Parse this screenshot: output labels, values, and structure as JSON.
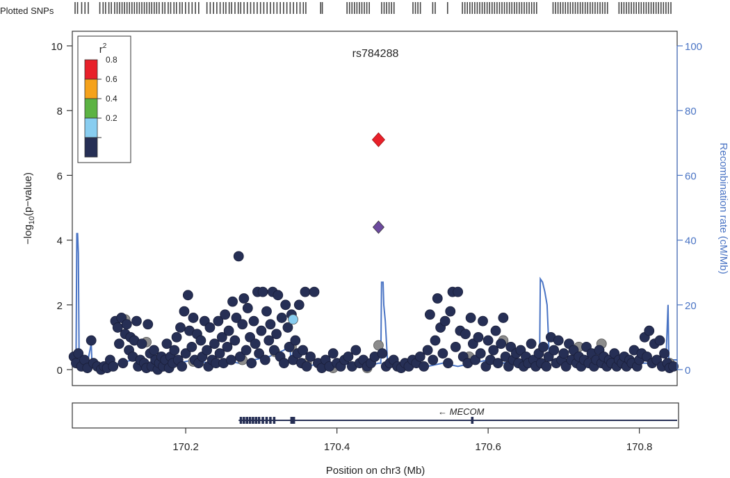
{
  "chart_data": {
    "type": "scatter",
    "title": "rs784288",
    "plotted_snps_label": "Plotted SNPs",
    "xlabel": "Position on chr3 (Mb)",
    "ylabel_left_prefix": "−log",
    "ylabel_left_sub": "10",
    "ylabel_left_suffix": "(p−value)",
    "ylabel_right": "Recombination rate (cM/Mb)",
    "xlim": [
      170.05,
      170.85
    ],
    "ylim_left": [
      0,
      10
    ],
    "ylim_right": [
      0,
      100
    ],
    "x_ticks": [
      170.2,
      170.4,
      170.6,
      170.8
    ],
    "x_tick_labels": [
      "170.2",
      "170.4",
      "170.6",
      "170.8"
    ],
    "y_ticks_left": [
      0,
      2,
      4,
      6,
      8,
      10
    ],
    "y_tick_labels_left": [
      "0",
      "2",
      "4",
      "6",
      "8",
      "10"
    ],
    "y_ticks_right": [
      0,
      20,
      40,
      60,
      80,
      100
    ],
    "y_tick_labels_right": [
      "0",
      "20",
      "40",
      "60",
      "80",
      "100"
    ],
    "legend": {
      "title": "r",
      "title_sup": "2",
      "position": "top-left",
      "bins": [
        {
          "label": "0.8",
          "color": "#e8202a"
        },
        {
          "label": "0.6",
          "color": "#f5a21b"
        },
        {
          "label": "0.4",
          "color": "#5cb343"
        },
        {
          "label": "0.2",
          "color": "#88cdf0"
        },
        {
          "label": "",
          "color": "#262f55"
        }
      ]
    },
    "colors": {
      "low": "#262f55",
      "missing": "#8c8c8c",
      "light": "#88cdf0",
      "index": "#e8202a",
      "secondary": "#6c4a9e",
      "recombination": "#4a74c4",
      "gene": "#262f55"
    },
    "index_snp": {
      "x": 170.455,
      "y": 7.1
    },
    "secondary_snp": {
      "x": 170.455,
      "y": 4.4
    },
    "points_low": [
      [
        170.052,
        0.4
      ],
      [
        170.055,
        0.2
      ],
      [
        170.058,
        0.5
      ],
      [
        170.062,
        0.1
      ],
      [
        170.066,
        0.3
      ],
      [
        170.07,
        0.05
      ],
      [
        170.075,
        0.9
      ],
      [
        170.078,
        0.2
      ],
      [
        170.083,
        0.1
      ],
      [
        170.088,
        0.0
      ],
      [
        170.092,
        0.1
      ],
      [
        170.096,
        0.05
      ],
      [
        170.1,
        0.3
      ],
      [
        170.104,
        0.1
      ],
      [
        170.107,
        1.5
      ],
      [
        170.11,
        1.3
      ],
      [
        170.112,
        0.8
      ],
      [
        170.115,
        1.6
      ],
      [
        170.117,
        0.2
      ],
      [
        170.12,
        1.1
      ],
      [
        170.122,
        1.4
      ],
      [
        170.125,
        0.6
      ],
      [
        170.127,
        1.0
      ],
      [
        170.13,
        0.4
      ],
      [
        170.132,
        0.9
      ],
      [
        170.135,
        1.5
      ],
      [
        170.137,
        0.1
      ],
      [
        170.14,
        0.3
      ],
      [
        170.142,
        0.8
      ],
      [
        170.145,
        0.2
      ],
      [
        170.148,
        0.05
      ],
      [
        170.15,
        1.4
      ],
      [
        170.153,
        0.5
      ],
      [
        170.155,
        0.1
      ],
      [
        170.158,
        0.6
      ],
      [
        170.16,
        0.3
      ],
      [
        170.163,
        0.0
      ],
      [
        170.165,
        0.2
      ],
      [
        170.168,
        0.4
      ],
      [
        170.17,
        0.1
      ],
      [
        170.173,
        0.3
      ],
      [
        170.175,
        0.8
      ],
      [
        170.178,
        0.05
      ],
      [
        170.18,
        0.4
      ],
      [
        170.183,
        0.2
      ],
      [
        170.185,
        0.6
      ],
      [
        170.188,
        1.0
      ],
      [
        170.19,
        0.3
      ],
      [
        170.193,
        1.3
      ],
      [
        170.195,
        0.1
      ],
      [
        170.198,
        1.8
      ],
      [
        170.2,
        0.5
      ],
      [
        170.203,
        2.3
      ],
      [
        170.205,
        1.2
      ],
      [
        170.208,
        0.7
      ],
      [
        170.21,
        1.6
      ],
      [
        170.212,
        0.3
      ],
      [
        170.215,
        1.1
      ],
      [
        170.217,
        0.2
      ],
      [
        170.22,
        0.9
      ],
      [
        170.222,
        0.4
      ],
      [
        170.225,
        1.5
      ],
      [
        170.228,
        0.6
      ],
      [
        170.23,
        0.1
      ],
      [
        170.232,
        1.3
      ],
      [
        170.235,
        0.3
      ],
      [
        170.238,
        0.8
      ],
      [
        170.24,
        0.2
      ],
      [
        170.243,
        1.5
      ],
      [
        170.245,
        0.5
      ],
      [
        170.248,
        1.0
      ],
      [
        170.25,
        0.2
      ],
      [
        170.252,
        1.7
      ],
      [
        170.255,
        0.7
      ],
      [
        170.257,
        1.2
      ],
      [
        170.26,
        0.3
      ],
      [
        170.262,
        2.1
      ],
      [
        170.265,
        0.9
      ],
      [
        170.267,
        1.6
      ],
      [
        170.27,
        3.5
      ],
      [
        170.272,
        0.4
      ],
      [
        170.275,
        1.4
      ],
      [
        170.277,
        2.2
      ],
      [
        170.28,
        0.6
      ],
      [
        170.282,
        1.9
      ],
      [
        170.285,
        1.0
      ],
      [
        170.287,
        0.2
      ],
      [
        170.29,
        1.5
      ],
      [
        170.292,
        0.8
      ],
      [
        170.295,
        2.4
      ],
      [
        170.297,
        0.5
      ],
      [
        170.3,
        1.2
      ],
      [
        170.302,
        2.4
      ],
      [
        170.305,
        0.3
      ],
      [
        170.307,
        1.8
      ],
      [
        170.31,
        0.9
      ],
      [
        170.312,
        1.4
      ],
      [
        170.315,
        2.4
      ],
      [
        170.317,
        0.6
      ],
      [
        170.32,
        1.1
      ],
      [
        170.322,
        2.3
      ],
      [
        170.325,
        0.4
      ],
      [
        170.327,
        1.6
      ],
      [
        170.33,
        0.2
      ],
      [
        170.332,
        2.0
      ],
      [
        170.335,
        1.3
      ],
      [
        170.337,
        0.7
      ],
      [
        170.34,
        1.7
      ],
      [
        170.342,
        0.3
      ],
      [
        170.345,
        0.9
      ],
      [
        170.348,
        0.5
      ],
      [
        170.35,
        2.0
      ],
      [
        170.353,
        0.2
      ],
      [
        170.355,
        0.6
      ],
      [
        170.358,
        2.4
      ],
      [
        170.36,
        0.1
      ],
      [
        170.365,
        0.4
      ],
      [
        170.37,
        2.4
      ],
      [
        170.375,
        0.2
      ],
      [
        170.38,
        0.05
      ],
      [
        170.385,
        0.3
      ],
      [
        170.39,
        0.1
      ],
      [
        170.395,
        0.5
      ],
      [
        170.4,
        0.2
      ],
      [
        170.405,
        0.1
      ],
      [
        170.41,
        0.3
      ],
      [
        170.415,
        0.4
      ],
      [
        170.42,
        0.1
      ],
      [
        170.425,
        0.6
      ],
      [
        170.43,
        0.2
      ],
      [
        170.435,
        0.3
      ],
      [
        170.44,
        0.1
      ],
      [
        170.445,
        0.2
      ],
      [
        170.45,
        0.4
      ],
      [
        170.46,
        0.5
      ],
      [
        170.465,
        0.1
      ],
      [
        170.47,
        0.2
      ],
      [
        170.475,
        0.3
      ],
      [
        170.48,
        0.1
      ],
      [
        170.485,
        0.05
      ],
      [
        170.49,
        0.2
      ],
      [
        170.495,
        0.1
      ],
      [
        170.5,
        0.3
      ],
      [
        170.505,
        0.2
      ],
      [
        170.51,
        0.4
      ],
      [
        170.515,
        0.1
      ],
      [
        170.52,
        0.6
      ],
      [
        170.523,
        1.7
      ],
      [
        170.527,
        0.3
      ],
      [
        170.53,
        0.9
      ],
      [
        170.533,
        2.2
      ],
      [
        170.537,
        1.3
      ],
      [
        170.54,
        0.5
      ],
      [
        170.543,
        1.5
      ],
      [
        170.547,
        0.2
      ],
      [
        170.55,
        1.8
      ],
      [
        170.553,
        2.4
      ],
      [
        170.557,
        0.7
      ],
      [
        170.56,
        2.4
      ],
      [
        170.563,
        1.2
      ],
      [
        170.567,
        0.4
      ],
      [
        170.57,
        1.1
      ],
      [
        170.573,
        0.2
      ],
      [
        170.577,
        1.6
      ],
      [
        170.58,
        0.8
      ],
      [
        170.583,
        0.3
      ],
      [
        170.587,
        1.0
      ],
      [
        170.59,
        0.5
      ],
      [
        170.593,
        1.5
      ],
      [
        170.597,
        0.1
      ],
      [
        170.6,
        0.9
      ],
      [
        170.603,
        0.3
      ],
      [
        170.607,
        0.6
      ],
      [
        170.61,
        1.2
      ],
      [
        170.613,
        0.2
      ],
      [
        170.617,
        0.8
      ],
      [
        170.62,
        1.6
      ],
      [
        170.623,
        0.4
      ],
      [
        170.627,
        0.1
      ],
      [
        170.63,
        0.7
      ],
      [
        170.633,
        0.3
      ],
      [
        170.637,
        0.5
      ],
      [
        170.64,
        0.2
      ],
      [
        170.643,
        0.6
      ],
      [
        170.647,
        0.1
      ],
      [
        170.65,
        0.4
      ],
      [
        170.653,
        0.2
      ],
      [
        170.657,
        0.8
      ],
      [
        170.66,
        0.3
      ],
      [
        170.663,
        0.1
      ],
      [
        170.667,
        0.5
      ],
      [
        170.67,
        0.2
      ],
      [
        170.673,
        0.7
      ],
      [
        170.677,
        0.1
      ],
      [
        170.68,
        0.4
      ],
      [
        170.683,
        1.0
      ],
      [
        170.687,
        0.6
      ],
      [
        170.69,
        0.2
      ],
      [
        170.693,
        0.9
      ],
      [
        170.697,
        0.3
      ],
      [
        170.7,
        0.5
      ],
      [
        170.703,
        0.1
      ],
      [
        170.707,
        0.8
      ],
      [
        170.71,
        0.3
      ],
      [
        170.713,
        0.6
      ],
      [
        170.717,
        0.2
      ],
      [
        170.72,
        0.4
      ],
      [
        170.723,
        0.1
      ],
      [
        170.727,
        0.3
      ],
      [
        170.73,
        0.7
      ],
      [
        170.733,
        0.2
      ],
      [
        170.737,
        0.5
      ],
      [
        170.74,
        0.1
      ],
      [
        170.743,
        0.3
      ],
      [
        170.747,
        0.6
      ],
      [
        170.75,
        0.2
      ],
      [
        170.753,
        0.4
      ],
      [
        170.757,
        0.1
      ],
      [
        170.76,
        0.3
      ],
      [
        170.763,
        0.2
      ],
      [
        170.767,
        0.5
      ],
      [
        170.77,
        0.1
      ],
      [
        170.773,
        0.3
      ],
      [
        170.777,
        0.2
      ],
      [
        170.78,
        0.4
      ],
      [
        170.783,
        0.1
      ],
      [
        170.787,
        0.3
      ],
      [
        170.79,
        0.2
      ],
      [
        170.793,
        0.6
      ],
      [
        170.797,
        0.1
      ],
      [
        170.8,
        0.3
      ],
      [
        170.803,
        0.5
      ],
      [
        170.807,
        1.0
      ],
      [
        170.81,
        0.4
      ],
      [
        170.813,
        1.2
      ],
      [
        170.817,
        0.2
      ],
      [
        170.82,
        0.8
      ],
      [
        170.823,
        0.3
      ],
      [
        170.827,
        0.9
      ],
      [
        170.83,
        0.1
      ],
      [
        170.833,
        0.5
      ],
      [
        170.837,
        0.2
      ],
      [
        170.84,
        0.05
      ],
      [
        170.845,
        0.1
      ]
    ],
    "points_missing": [
      [
        170.12,
        1.55
      ],
      [
        170.148,
        0.85
      ],
      [
        170.21,
        0.25
      ],
      [
        170.275,
        0.3
      ],
      [
        170.318,
        0.55
      ],
      [
        170.34,
        0.7
      ],
      [
        170.36,
        0.2
      ],
      [
        170.395,
        0.05
      ],
      [
        170.44,
        0.05
      ],
      [
        170.455,
        0.75
      ],
      [
        170.575,
        0.4
      ],
      [
        170.62,
        0.9
      ],
      [
        170.66,
        0.2
      ],
      [
        170.72,
        0.7
      ],
      [
        170.75,
        0.8
      ],
      [
        170.84,
        0.2
      ]
    ],
    "points_light": [
      [
        170.342,
        1.55
      ]
    ],
    "recombination": [
      [
        170.05,
        4
      ],
      [
        170.055,
        4
      ],
      [
        170.056,
        42
      ],
      [
        170.057,
        42
      ],
      [
        170.058,
        36
      ],
      [
        170.059,
        3
      ],
      [
        170.07,
        2
      ],
      [
        170.075,
        8
      ],
      [
        170.076,
        2
      ],
      [
        170.095,
        1
      ],
      [
        170.13,
        3
      ],
      [
        170.15,
        2
      ],
      [
        170.17,
        3
      ],
      [
        170.19,
        2
      ],
      [
        170.21,
        3
      ],
      [
        170.23,
        2
      ],
      [
        170.25,
        3
      ],
      [
        170.27,
        2
      ],
      [
        170.29,
        3
      ],
      [
        170.31,
        4
      ],
      [
        170.33,
        6
      ],
      [
        170.338,
        8
      ],
      [
        170.339,
        2
      ],
      [
        170.345,
        9
      ],
      [
        170.346,
        2
      ],
      [
        170.36,
        1
      ],
      [
        170.38,
        2
      ],
      [
        170.4,
        1
      ],
      [
        170.42,
        2
      ],
      [
        170.44,
        1
      ],
      [
        170.455,
        2
      ],
      [
        170.458,
        2
      ],
      [
        170.459,
        27
      ],
      [
        170.461,
        27
      ],
      [
        170.462,
        20
      ],
      [
        170.464,
        15
      ],
      [
        170.467,
        2
      ],
      [
        170.48,
        1
      ],
      [
        170.5,
        2
      ],
      [
        170.52,
        1
      ],
      [
        170.54,
        2
      ],
      [
        170.56,
        1
      ],
      [
        170.58,
        2
      ],
      [
        170.6,
        3
      ],
      [
        170.62,
        2
      ],
      [
        170.64,
        3
      ],
      [
        170.66,
        2
      ],
      [
        170.668,
        3
      ],
      [
        170.669,
        28
      ],
      [
        170.672,
        27
      ],
      [
        170.675,
        24
      ],
      [
        170.678,
        20
      ],
      [
        170.681,
        3
      ],
      [
        170.7,
        2
      ],
      [
        170.72,
        2
      ],
      [
        170.74,
        3
      ],
      [
        170.76,
        2
      ],
      [
        170.78,
        2
      ],
      [
        170.8,
        2
      ],
      [
        170.82,
        2
      ],
      [
        170.835,
        2
      ],
      [
        170.838,
        20
      ],
      [
        170.839,
        3
      ],
      [
        170.85,
        3
      ]
    ],
    "plotted_snp_positions": [
      170.0,
      170.003,
      170.008,
      170.012,
      170.016,
      170.03,
      170.034,
      170.037,
      170.041,
      170.044,
      170.048,
      170.051,
      170.054,
      170.057,
      170.06,
      170.063,
      170.066,
      170.069,
      170.072,
      170.075,
      170.078,
      170.081,
      170.084,
      170.087,
      170.09,
      170.093,
      170.096,
      170.099,
      170.102,
      170.106,
      170.109,
      170.113,
      170.116,
      170.12,
      170.123,
      170.127,
      170.13,
      170.134,
      170.138,
      170.142,
      170.146,
      170.15,
      170.16,
      170.164,
      170.168,
      170.172,
      170.176,
      170.18,
      170.183,
      170.187,
      170.19,
      170.194,
      170.198,
      170.201,
      170.205,
      170.209,
      170.213,
      170.217,
      170.221,
      170.225,
      170.229,
      170.233,
      170.237,
      170.241,
      170.245,
      170.249,
      170.253,
      170.257,
      170.261,
      170.265,
      170.269,
      170.273,
      170.277,
      170.28,
      170.298,
      170.3,
      170.33,
      170.333,
      170.336,
      170.339,
      170.342,
      170.345,
      170.348,
      170.351,
      170.354,
      170.357,
      170.372,
      170.375,
      170.378,
      170.381,
      170.384,
      170.387,
      170.41,
      170.413,
      170.416,
      170.419,
      170.434,
      170.437,
      170.452,
      170.47,
      170.473,
      170.476,
      170.479,
      170.482,
      170.485,
      170.488,
      170.491,
      170.494,
      170.497,
      170.5,
      170.503,
      170.506,
      170.509,
      170.512,
      170.515,
      170.518,
      170.521,
      170.524,
      170.527,
      170.53,
      170.533,
      170.536,
      170.539,
      170.542,
      170.545,
      170.548,
      170.551,
      170.554,
      170.557,
      170.56,
      170.58,
      170.583,
      170.586,
      170.589,
      170.592,
      170.595,
      170.598,
      170.601,
      170.604,
      170.607,
      170.61,
      170.613,
      170.616,
      170.619,
      170.622,
      170.625,
      170.628,
      170.631,
      170.634,
      170.637,
      170.64,
      170.643,
      170.646,
      170.66,
      170.663,
      170.666,
      170.669,
      170.672,
      170.675,
      170.678,
      170.681,
      170.684,
      170.687,
      170.69,
      170.693,
      170.696,
      170.699,
      170.702,
      170.705,
      170.708,
      170.711,
      170.714,
      170.717,
      170.72,
      170.723
    ],
    "gene": {
      "name": "MECOM",
      "strand_arrow": "←",
      "start": 170.27,
      "end": 170.85,
      "exons": [
        170.273,
        170.277,
        170.281,
        170.285,
        170.289,
        170.293,
        170.297,
        170.302,
        170.307,
        170.312,
        170.317,
        170.34,
        170.343,
        170.579
      ]
    }
  }
}
